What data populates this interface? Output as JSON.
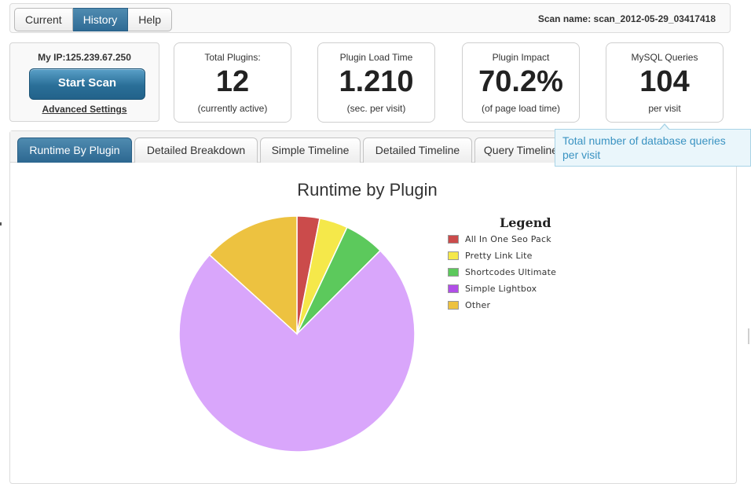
{
  "nav": {
    "tabs": [
      {
        "label": "Current",
        "active": false
      },
      {
        "label": "History",
        "active": true
      },
      {
        "label": "Help",
        "active": false
      }
    ],
    "scan_name": "Scan name: scan_2012-05-29_03417418"
  },
  "ip_box": {
    "ip_label": "My IP:",
    "ip_value": "125.239.67.250",
    "start_label": "Start Scan",
    "advanced_label": "Advanced Settings"
  },
  "stats": [
    {
      "label": "Total Plugins:",
      "value": "12",
      "sub": "(currently active)"
    },
    {
      "label": "Plugin Load Time",
      "value": "1.210",
      "sub": "(sec. per visit)"
    },
    {
      "label": "Plugin Impact",
      "value": "70.2%",
      "sub": "(of page load time)"
    },
    {
      "label": "MySQL Queries",
      "value": "104",
      "sub": "per visit"
    }
  ],
  "tooltip": "Total number of database queries per visit",
  "main_tabs": [
    {
      "label": "Runtime By Plugin",
      "active": true
    },
    {
      "label": "Detailed Breakdown",
      "active": false
    },
    {
      "label": "Simple Timeline",
      "active": false
    },
    {
      "label": "Detailed Timeline",
      "active": false
    },
    {
      "label": "Query Timeline",
      "active": false
    }
  ],
  "chart_data": {
    "type": "pie",
    "title": "Runtime by Plugin",
    "legend_title": "Legend",
    "legend_position": "right",
    "slices": [
      {
        "name": "All In One Seo Pack",
        "value": 3.1,
        "color": "#cb4b4b"
      },
      {
        "name": "Pretty Link Lite",
        "value": 3.9,
        "color": "#f5e84a"
      },
      {
        "name": "Shortcodes Ultimate",
        "value": 5.5,
        "color": "#5cc95c"
      },
      {
        "name": "Simple Lightbox",
        "value": 74.2,
        "color": "#d9a6fb"
      },
      {
        "name": "Other",
        "value": 13.3,
        "color": "#edc240"
      }
    ],
    "legend_swatches": [
      "#cb4b4b",
      "#f5e84a",
      "#5cc95c",
      "#b14ee8",
      "#edc240"
    ]
  }
}
